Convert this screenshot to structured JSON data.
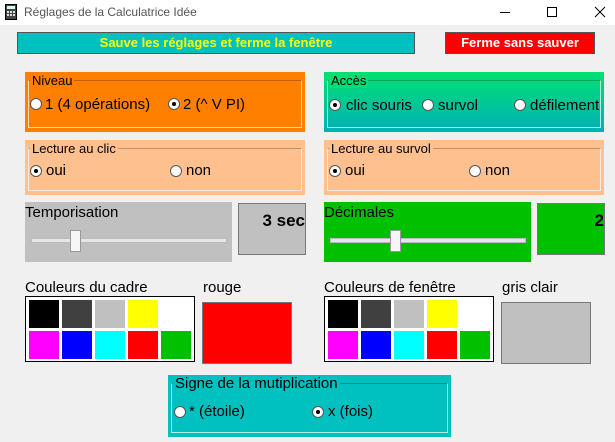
{
  "window": {
    "title": "Réglages de la Calculatrice Idée"
  },
  "buttons": {
    "save": "Sauve les réglages et ferme la fenêtre",
    "cancel": "Ferme sans sauver"
  },
  "niveau": {
    "title": "Niveau",
    "options": [
      "1 (4 opérations)",
      "2 (^ V PI)"
    ]
  },
  "acces": {
    "title": "Accès",
    "options": [
      "clic souris",
      "survol",
      "défilement"
    ]
  },
  "lecture_clic": {
    "title": "Lecture au clic",
    "options": [
      "oui",
      "non"
    ]
  },
  "lecture_survol": {
    "title": "Lecture au survol",
    "options": [
      "oui",
      "non"
    ]
  },
  "temporisation": {
    "title": "Temporisation",
    "value": "3 sec"
  },
  "decimales": {
    "title": "Décimales",
    "value": 2
  },
  "couleurs_cadre": {
    "title": "Couleurs du cadre",
    "selected": "rouge"
  },
  "couleurs_fenetre": {
    "title": "Couleurs de fenêtre",
    "selected": "gris clair"
  },
  "multiplication": {
    "title": "Signe de la mutiplication",
    "options": [
      "* (étoile)",
      "x (fois)"
    ]
  }
}
